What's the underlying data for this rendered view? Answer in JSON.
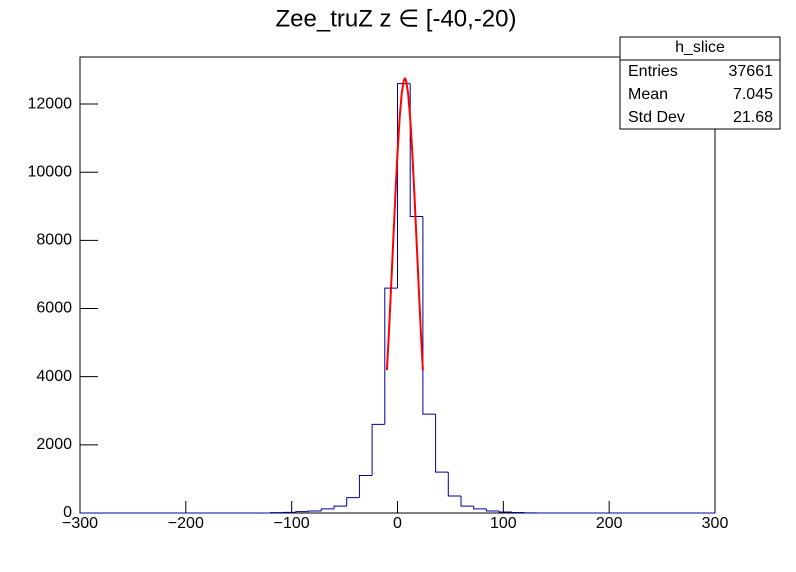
{
  "chart_data": {
    "type": "histogram",
    "title": "Zee_truZ z ∈ [-40,-20)",
    "bins": [
      -300,
      -288,
      -276,
      -264,
      -252,
      -240,
      -228,
      -216,
      -204,
      -192,
      -180,
      -168,
      -156,
      -144,
      -132,
      -120,
      -108,
      -96,
      -84,
      -72,
      -60,
      -48,
      -36,
      -24,
      -12,
      0,
      12,
      24,
      36,
      48,
      60,
      72,
      84,
      96,
      108,
      120,
      132,
      144,
      156,
      168,
      180,
      192,
      204,
      216,
      228,
      240,
      252,
      264,
      276,
      288,
      300
    ],
    "series": [
      {
        "name": "h_slice",
        "color": "#000099",
        "values": [
          0,
          0,
          0,
          0,
          0,
          0,
          0,
          0,
          0,
          0,
          0,
          0,
          0,
          0,
          0,
          10,
          20,
          40,
          60,
          120,
          200,
          450,
          1100,
          2600,
          6600,
          12600,
          8700,
          2900,
          1200,
          500,
          200,
          120,
          60,
          30,
          15,
          5,
          0,
          0,
          0,
          0,
          0,
          0,
          0,
          0,
          0,
          0,
          0,
          0,
          0,
          0
        ]
      }
    ],
    "fit": {
      "color": "#ff0000",
      "x": [
        -10,
        -8,
        -6,
        -4,
        -2,
        0,
        2,
        4,
        6,
        7,
        8,
        10,
        12,
        14,
        16,
        18,
        20,
        22,
        24
      ],
      "values": [
        4190,
        5360,
        6660,
        8000,
        9330,
        10560,
        11580,
        12320,
        12700,
        12750,
        12700,
        12320,
        11580,
        10560,
        9330,
        8000,
        6660,
        5360,
        4190
      ]
    },
    "stats": [
      {
        "label": "Entries",
        "value": 37661
      },
      {
        "label": "Mean",
        "value": 7.045
      },
      {
        "label": "Std Dev",
        "value": 21.68
      }
    ],
    "xlim": [
      -300,
      300
    ],
    "ylim": [
      0,
      13380
    ],
    "xticks": [
      {
        "value": -300,
        "label": "−300"
      },
      {
        "value": -200,
        "label": "−200"
      },
      {
        "value": -100,
        "label": "−100"
      },
      0,
      100,
      200,
      300
    ],
    "yticks": [
      0,
      2000,
      4000,
      6000,
      8000,
      10000,
      12000
    ]
  }
}
